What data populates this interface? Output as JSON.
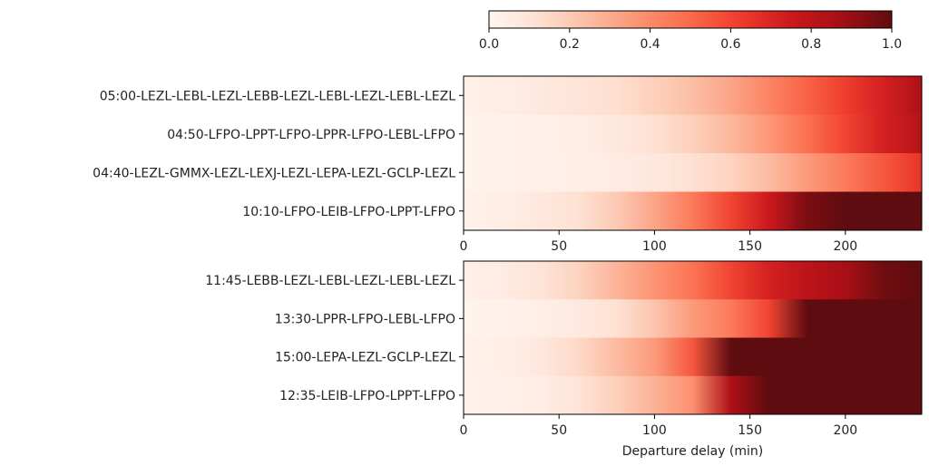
{
  "chart_data": [
    {
      "type": "heatmap",
      "colormap": "Reds",
      "x": [
        0,
        20,
        40,
        60,
        80,
        100,
        120,
        140,
        160,
        180,
        200,
        220,
        240
      ],
      "xlim": [
        0,
        240
      ],
      "xticks": [
        "0",
        "50",
        "100",
        "150",
        "200"
      ],
      "xlabel": "",
      "rows": [
        {
          "label": "05:00-LEZL-LEBL-LEZL-LEBB-LEZL-LEBL-LEZL-LEBL-LEZL",
          "values": [
            0.03,
            0.05,
            0.07,
            0.1,
            0.13,
            0.18,
            0.24,
            0.32,
            0.42,
            0.52,
            0.62,
            0.72,
            0.85
          ]
        },
        {
          "label": "04:50-LFPO-LPPT-LFPO-LPPR-LFPO-LEBL-LFPO",
          "values": [
            0.01,
            0.02,
            0.03,
            0.05,
            0.08,
            0.12,
            0.18,
            0.26,
            0.36,
            0.48,
            0.6,
            0.72,
            0.82
          ]
        },
        {
          "label": "04:40-LEZL-GMMX-LEZL-LEXJ-LEZL-LEPA-LEZL-GCLP-LEZL",
          "values": [
            0.01,
            0.02,
            0.03,
            0.04,
            0.06,
            0.08,
            0.12,
            0.17,
            0.25,
            0.35,
            0.45,
            0.55,
            0.65
          ]
        },
        {
          "label": "10:10-LFPO-LEIB-LFPO-LPPT-LFPO",
          "values": [
            0.02,
            0.05,
            0.08,
            0.12,
            0.2,
            0.32,
            0.45,
            0.6,
            0.75,
            0.95,
            1,
            1,
            1
          ]
        }
      ]
    },
    {
      "type": "heatmap",
      "colormap": "Reds",
      "x": [
        0,
        20,
        40,
        60,
        80,
        100,
        120,
        140,
        160,
        180,
        200,
        220,
        240
      ],
      "xlim": [
        0,
        240
      ],
      "xticks": [
        "0",
        "50",
        "100",
        "150",
        "200"
      ],
      "xlabel": "Departure delay (min)",
      "rows": [
        {
          "label": "11:45-LEBB-LEZL-LEBL-LEZL-LEBL-LEZL",
          "values": [
            0.03,
            0.06,
            0.1,
            0.17,
            0.27,
            0.37,
            0.47,
            0.6,
            0.72,
            0.8,
            0.87,
            0.97,
            1
          ]
        },
        {
          "label": "13:30-LPPR-LFPO-LEBL-LFPO",
          "values": [
            0.01,
            0.02,
            0.04,
            0.07,
            0.12,
            0.22,
            0.35,
            0.45,
            0.6,
            1,
            1,
            1,
            1
          ]
        },
        {
          "label": "15:00-LEPA-LEZL-GCLP-LEZL",
          "values": [
            0.02,
            0.04,
            0.08,
            0.15,
            0.25,
            0.35,
            0.55,
            1,
            1,
            1,
            1,
            1,
            1
          ]
        },
        {
          "label": "12:35-LEIB-LFPO-LPPT-LFPO",
          "values": [
            0.02,
            0.03,
            0.05,
            0.1,
            0.18,
            0.28,
            0.38,
            0.85,
            1,
            1,
            1,
            1,
            1
          ]
        }
      ]
    }
  ],
  "colorbar": {
    "range": [
      0,
      1
    ],
    "ticks": [
      "0.0",
      "0.2",
      "0.4",
      "0.6",
      "0.8",
      "1.0"
    ],
    "orientation": "horizontal",
    "position": "top"
  }
}
